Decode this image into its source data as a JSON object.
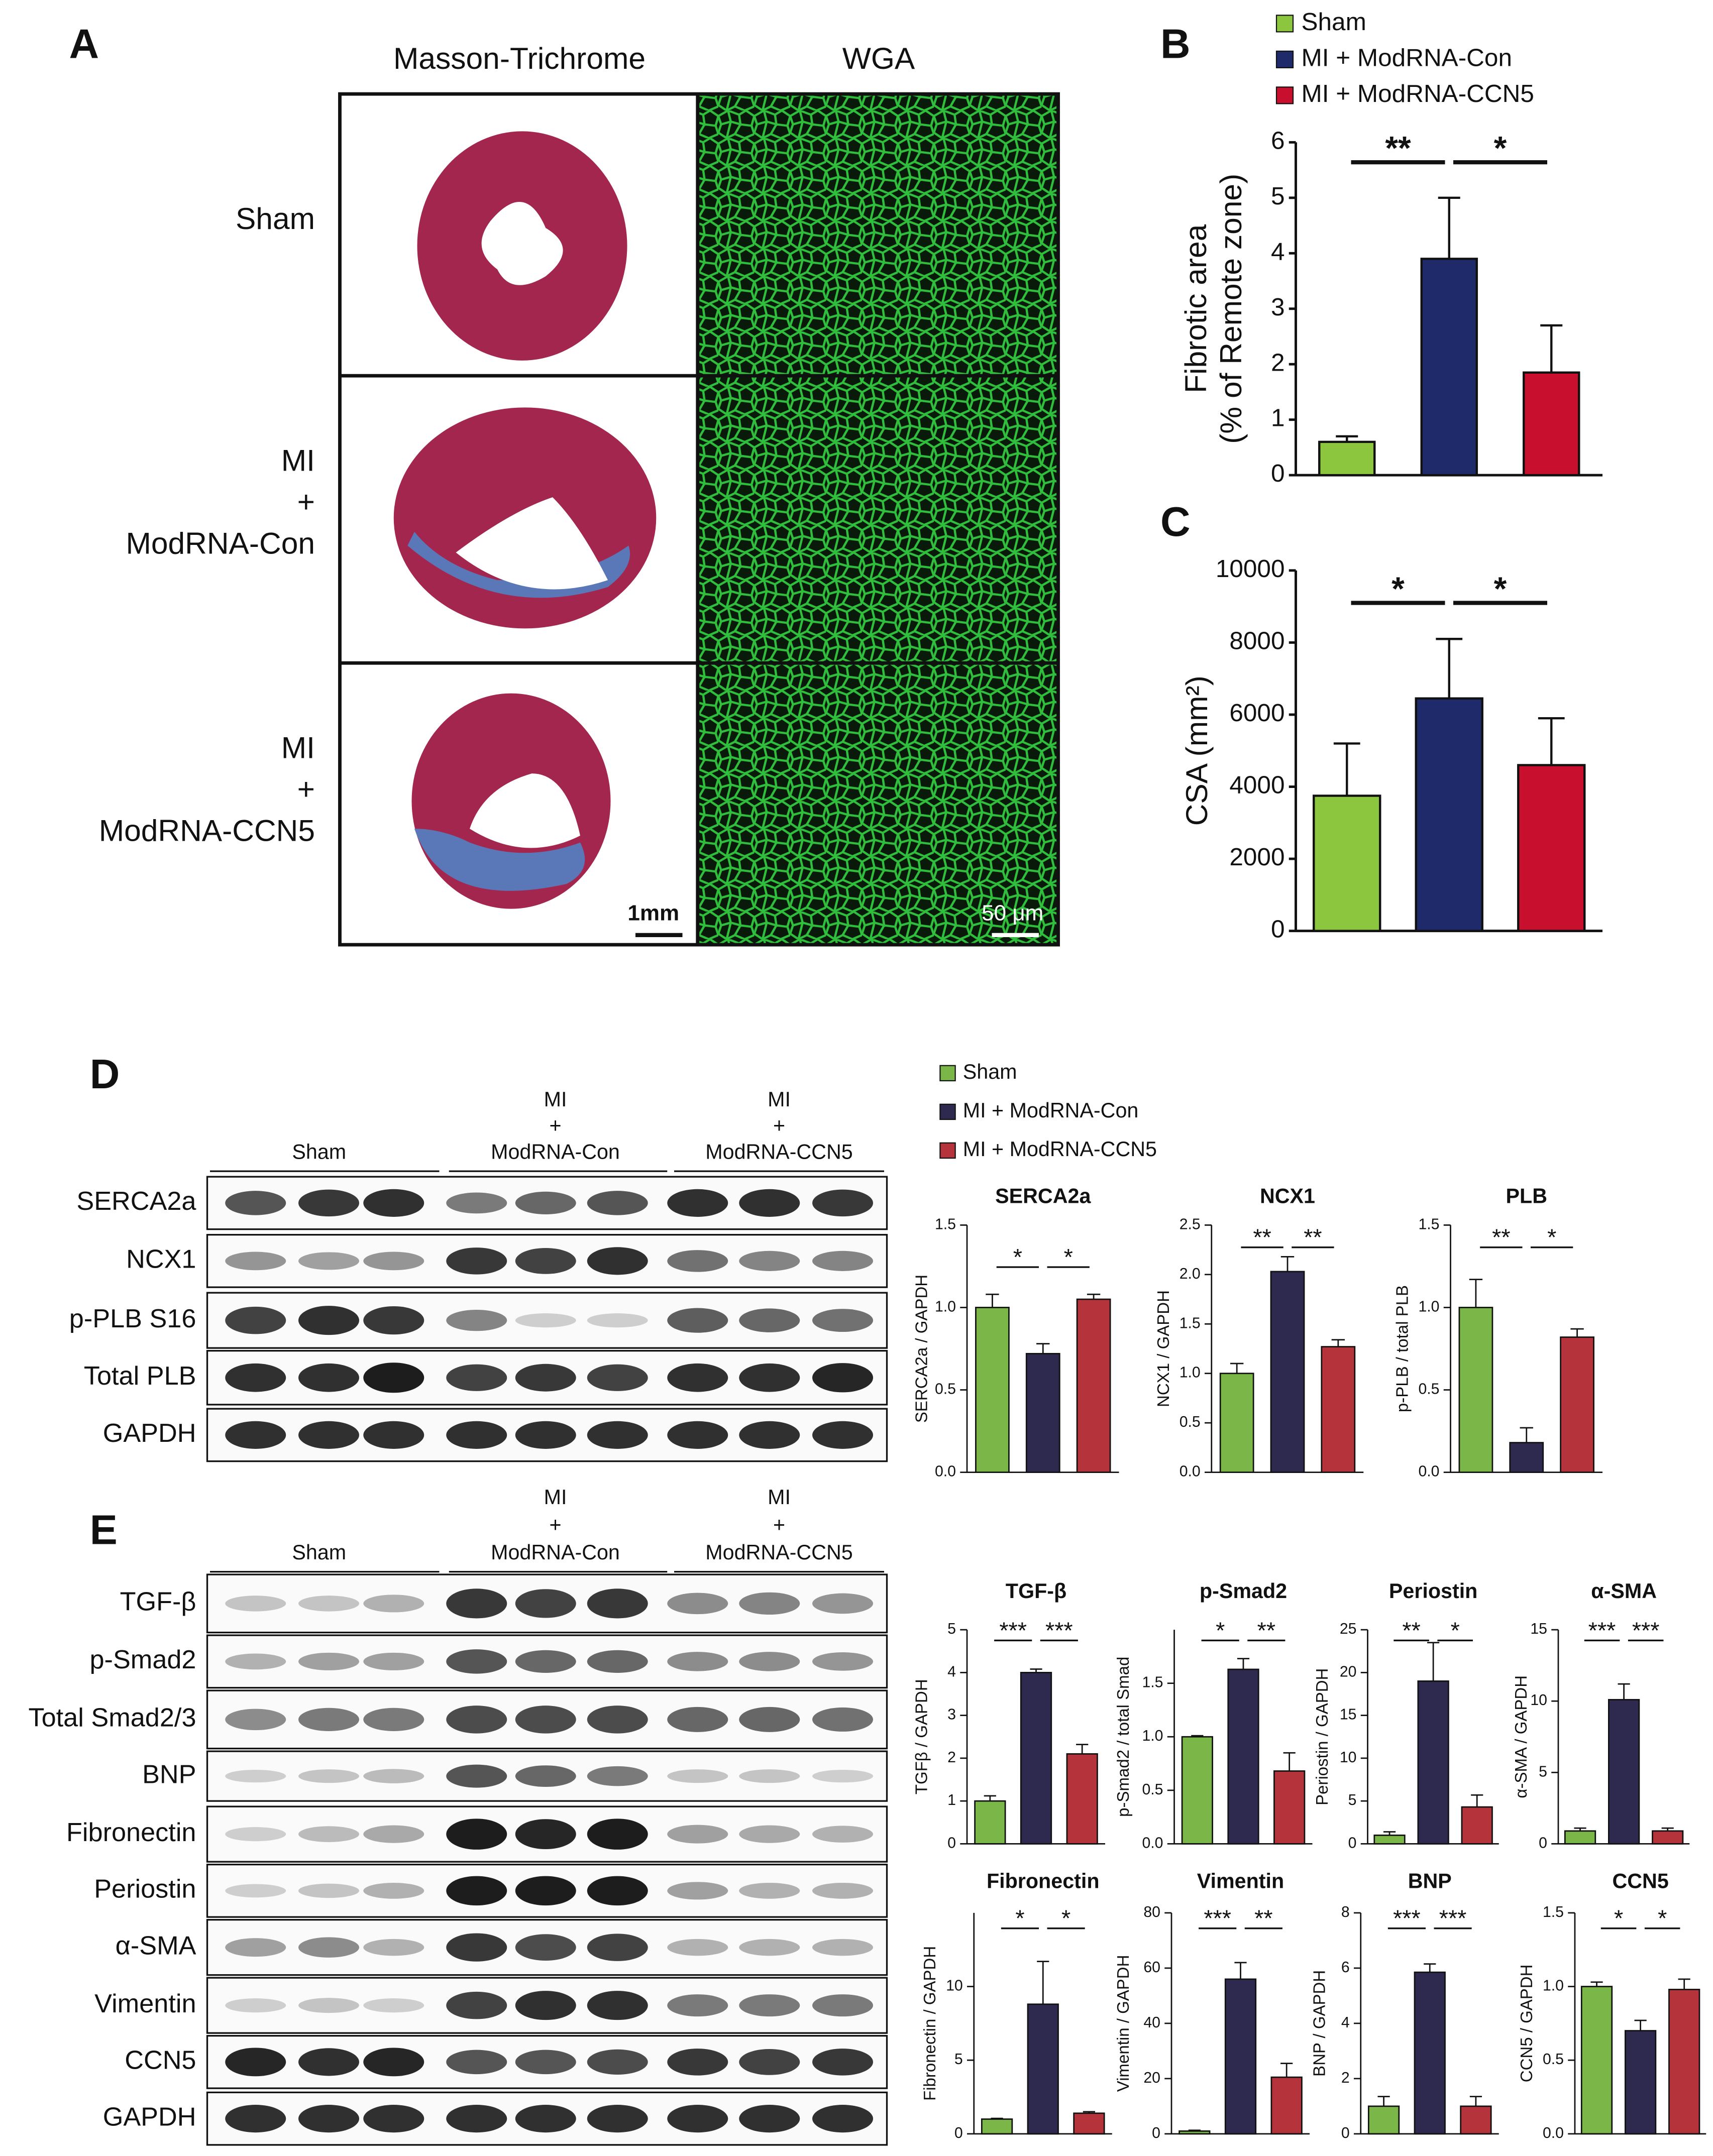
{
  "panel_labels": [
    "A",
    "B",
    "C",
    "D",
    "E"
  ],
  "histology": {
    "columns": [
      "Masson-Trichrome",
      "WGA"
    ],
    "rows": [
      [
        "Sham"
      ],
      [
        "MI",
        "+",
        "ModRNA-Con"
      ],
      [
        "MI",
        "+",
        "ModRNA-CCN5"
      ]
    ],
    "scale_bars": [
      "1mm",
      "50 μm"
    ]
  },
  "legends": [
    {
      "entries": [
        {
          "name": "Sham",
          "color": "#8cc63f"
        },
        {
          "name": "MI + ModRNA-Con",
          "color": "#1f2a6b"
        },
        {
          "name": "MI + ModRNA-CCN5",
          "color": "#c8102e"
        }
      ]
    },
    {
      "entries": [
        {
          "name": "Sham",
          "color": "#7ab648"
        },
        {
          "name": "MI + ModRNA-Con",
          "color": "#2e2a4f"
        },
        {
          "name": "MI + ModRNA-CCN5",
          "color": "#b5333a"
        }
      ]
    }
  ],
  "blots": [
    {
      "groups": [
        [
          "Sham"
        ],
        [
          "MI",
          "+",
          "ModRNA-Con"
        ],
        [
          "MI",
          "+",
          "ModRNA-CCN5"
        ]
      ],
      "rows": [
        "SERCA2a",
        "NCX1",
        "p-PLB S16",
        "Total PLB",
        "GAPDH"
      ]
    },
    {
      "groups": [
        [
          "Sham"
        ],
        [
          "MI",
          "+",
          "ModRNA-Con"
        ],
        [
          "MI",
          "+",
          "ModRNA-CCN5"
        ]
      ],
      "rows": [
        "TGF-β",
        "p-Smad2",
        "Total Smad2/3",
        "BNP",
        "Fibronectin",
        "Periostin",
        "α-SMA",
        "Vimentin",
        "CCN5",
        "GAPDH"
      ]
    }
  ],
  "chart_data": [
    {
      "type": "bar",
      "ylabel": [
        "Fibrotic area",
        "(% of Remote zone)"
      ],
      "colors": [
        "#8cc63f",
        "#1f2a6b",
        "#c8102e"
      ],
      "values": [
        0.6,
        3.9,
        1.85
      ],
      "errors": [
        0.1,
        1.1,
        0.85
      ],
      "ylim": [
        0,
        6
      ],
      "yticks": [
        0,
        1,
        2,
        3,
        4,
        5,
        6
      ],
      "annotations": [
        "**",
        "*"
      ]
    },
    {
      "type": "bar",
      "ylabel": [
        "CSA (mm²)"
      ],
      "colors": [
        "#8cc63f",
        "#1f2a6b",
        "#c8102e"
      ],
      "values": [
        3750,
        6450,
        4600
      ],
      "errors": [
        1450,
        1650,
        1300
      ],
      "ylim": [
        0,
        10000
      ],
      "yticks": [
        0,
        2000,
        4000,
        6000,
        8000,
        10000
      ],
      "annotations": [
        "*",
        "*"
      ]
    },
    {
      "type": "bar",
      "title": "SERCA2a",
      "ylabel": [
        "SERCA2a / GAPDH"
      ],
      "colors": [
        "#7ab648",
        "#2e2a4f",
        "#b5333a"
      ],
      "values": [
        1.0,
        0.72,
        1.05
      ],
      "errors": [
        0.08,
        0.06,
        0.03
      ],
      "ylim": [
        0,
        1.5
      ],
      "yticks": [
        {
          "value": 0,
          "label": "0.0"
        },
        0.5,
        {
          "value": 1,
          "label": "1.0"
        },
        1.5
      ],
      "annotations": [
        "*",
        "*"
      ]
    },
    {
      "type": "bar",
      "title": "NCX1",
      "ylabel": [
        "NCX1 / GAPDH"
      ],
      "colors": [
        "#7ab648",
        "#2e2a4f",
        "#b5333a"
      ],
      "values": [
        1.0,
        2.03,
        1.27
      ],
      "errors": [
        0.1,
        0.15,
        0.07
      ],
      "ylim": [
        0,
        2.5
      ],
      "yticks": [
        {
          "value": 0,
          "label": "0.0"
        },
        0.5,
        {
          "value": 1,
          "label": "1.0"
        },
        1.5,
        {
          "value": 2,
          "label": "2.0"
        },
        2.5
      ],
      "annotations": [
        "**",
        "**"
      ]
    },
    {
      "type": "bar",
      "title": "PLB",
      "ylabel": [
        "p-PLB / total PLB"
      ],
      "colors": [
        "#7ab648",
        "#2e2a4f",
        "#b5333a"
      ],
      "values": [
        1.0,
        0.18,
        0.82
      ],
      "errors": [
        0.17,
        0.09,
        0.05
      ],
      "ylim": [
        0,
        1.5
      ],
      "yticks": [
        {
          "value": 0,
          "label": "0.0"
        },
        0.5,
        {
          "value": 1,
          "label": "1.0"
        },
        1.5
      ],
      "annotations": [
        "**",
        "*"
      ]
    },
    {
      "type": "bar",
      "title": "TGF-β",
      "ylabel": [
        "TGFβ / GAPDH"
      ],
      "colors": [
        "#7ab648",
        "#2e2a4f",
        "#b5333a"
      ],
      "values": [
        1.0,
        4.0,
        2.1
      ],
      "errors": [
        0.12,
        0.08,
        0.22
      ],
      "ylim": [
        0,
        5
      ],
      "yticks": [
        0,
        1,
        2,
        3,
        4,
        5
      ],
      "annotations": [
        "***",
        "***"
      ]
    },
    {
      "type": "bar",
      "title": "p-Smad2",
      "ylabel": [
        "p-Smad2 / total Smad"
      ],
      "colors": [
        "#7ab648",
        "#2e2a4f",
        "#b5333a"
      ],
      "values": [
        1.0,
        1.63,
        0.68
      ],
      "errors": [
        0.01,
        0.1,
        0.17
      ],
      "ylim": [
        0,
        2
      ],
      "yticks": [
        {
          "value": 0,
          "label": "0.0"
        },
        0.5,
        {
          "value": 1,
          "label": "1.0"
        },
        1.5
      ],
      "annotations": [
        "*",
        "**"
      ]
    },
    {
      "type": "bar",
      "title": "Periostin",
      "ylabel": [
        "Periostin / GAPDH"
      ],
      "colors": [
        "#7ab648",
        "#2e2a4f",
        "#b5333a"
      ],
      "values": [
        1.0,
        19,
        4.3
      ],
      "errors": [
        0.4,
        4.5,
        1.4
      ],
      "ylim": [
        0,
        25
      ],
      "yticks": [
        0,
        5,
        10,
        15,
        20,
        25
      ],
      "annotations": [
        "**",
        "*"
      ]
    },
    {
      "type": "bar",
      "title": "α-SMA",
      "ylabel": [
        "α-SMA / GAPDH"
      ],
      "colors": [
        "#7ab648",
        "#2e2a4f",
        "#b5333a"
      ],
      "values": [
        0.9,
        10.1,
        0.9
      ],
      "errors": [
        0.2,
        1.1,
        0.2
      ],
      "ylim": [
        0,
        15
      ],
      "yticks": [
        0,
        5,
        10,
        15
      ],
      "annotations": [
        "***",
        "***"
      ]
    },
    {
      "type": "bar",
      "title": "Fibronectin",
      "ylabel": [
        "Fibronectin / GAPDH"
      ],
      "colors": [
        "#7ab648",
        "#2e2a4f",
        "#b5333a"
      ],
      "values": [
        1.0,
        8.8,
        1.4
      ],
      "errors": [
        0.05,
        2.9,
        0.1
      ],
      "ylim": [
        0,
        15
      ],
      "yticks": [
        0,
        5,
        10
      ],
      "annotations": [
        "*",
        "*"
      ]
    },
    {
      "type": "bar",
      "title": "Vimentin",
      "ylabel": [
        "Vimentin / GAPDH"
      ],
      "colors": [
        "#7ab648",
        "#2e2a4f",
        "#b5333a"
      ],
      "values": [
        1,
        56,
        20.5
      ],
      "errors": [
        0.3,
        6,
        5
      ],
      "ylim": [
        0,
        80
      ],
      "yticks": [
        0,
        20,
        40,
        60,
        80
      ],
      "annotations": [
        "***",
        "**"
      ]
    },
    {
      "type": "bar",
      "title": "BNP",
      "ylabel": [
        "BNP / GAPDH"
      ],
      "colors": [
        "#7ab648",
        "#2e2a4f",
        "#b5333a"
      ],
      "values": [
        1.0,
        5.85,
        1.0
      ],
      "errors": [
        0.35,
        0.3,
        0.35
      ],
      "ylim": [
        0,
        8
      ],
      "yticks": [
        0,
        2,
        4,
        6,
        8
      ],
      "annotations": [
        "***",
        "***"
      ]
    },
    {
      "type": "bar",
      "title": "CCN5",
      "ylabel": [
        "CCN5 / GAPDH"
      ],
      "colors": [
        "#7ab648",
        "#2e2a4f",
        "#b5333a"
      ],
      "values": [
        1.0,
        0.7,
        0.98
      ],
      "errors": [
        0.03,
        0.07,
        0.07
      ],
      "ylim": [
        0,
        1.5
      ],
      "yticks": [
        {
          "value": 0,
          "label": "0.0"
        },
        0.5,
        {
          "value": 1,
          "label": "1.0"
        },
        1.5
      ],
      "annotations": [
        "*",
        "*"
      ]
    }
  ]
}
